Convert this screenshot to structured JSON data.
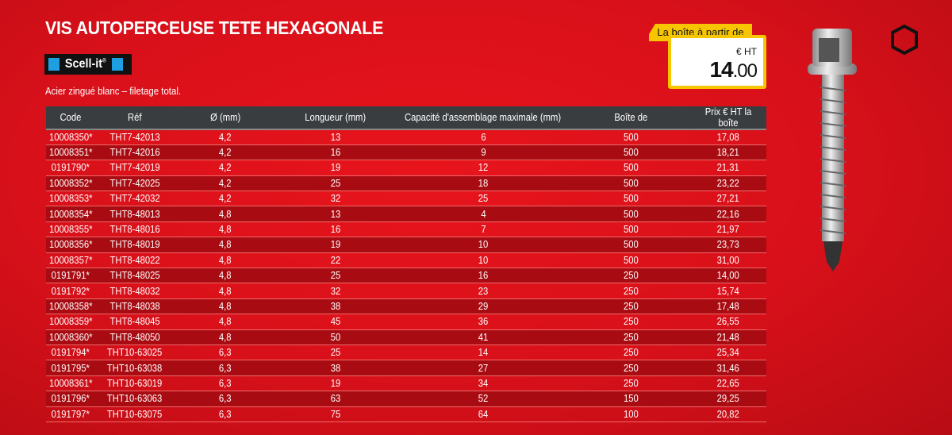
{
  "title": "VIS AUTOPERCEUSE TETE HEXAGONALE",
  "brand": "Scell-it",
  "brand_mark": "®",
  "subtitle": "Acier zingué blanc – filetage total.",
  "price_tag": {
    "label": "La boîte à partir de",
    "unit": "€ HT",
    "int": "14",
    "dec": ".00"
  },
  "colors": {
    "background": "#d8101a",
    "header": "#3a3d40",
    "alt_row": "#a80c12",
    "tag": "#f7c600",
    "brand_blue": "#1ea0e0"
  },
  "icons": [
    "screw-image",
    "hexagon-head-icon"
  ],
  "table": {
    "headers": [
      "Code",
      "Réf",
      "Ø (mm)",
      "Longueur (mm)",
      "Capacité d'assemblage maximale (mm)",
      "Boîte de",
      "Prix € HT la boîte"
    ],
    "rows": [
      [
        "10008350*",
        "THT7-42013",
        "4,2",
        "13",
        "6",
        "500",
        "17,08"
      ],
      [
        "10008351*",
        "THT7-42016",
        "4,2",
        "16",
        "9",
        "500",
        "18,21"
      ],
      [
        "0191790*",
        "THT7-42019",
        "4,2",
        "19",
        "12",
        "500",
        "21,31"
      ],
      [
        "10008352*",
        "THT7-42025",
        "4,2",
        "25",
        "18",
        "500",
        "23,22"
      ],
      [
        "10008353*",
        "THT7-42032",
        "4,2",
        "32",
        "25",
        "500",
        "27,21"
      ],
      [
        "10008354*",
        "THT8-48013",
        "4,8",
        "13",
        "4",
        "500",
        "22,16"
      ],
      [
        "10008355*",
        "THT8-48016",
        "4,8",
        "16",
        "7",
        "500",
        "21,97"
      ],
      [
        "10008356*",
        "THT8-48019",
        "4,8",
        "19",
        "10",
        "500",
        "23,73"
      ],
      [
        "10008357*",
        "THT8-48022",
        "4,8",
        "22",
        "10",
        "500",
        "31,00"
      ],
      [
        "0191791*",
        "THT8-48025",
        "4,8",
        "25",
        "16",
        "250",
        "14,00"
      ],
      [
        "0191792*",
        "THT8-48032",
        "4,8",
        "32",
        "23",
        "250",
        "15,74"
      ],
      [
        "10008358*",
        "THT8-48038",
        "4,8",
        "38",
        "29",
        "250",
        "17,48"
      ],
      [
        "10008359*",
        "THT8-48045",
        "4,8",
        "45",
        "36",
        "250",
        "26,55"
      ],
      [
        "10008360*",
        "THT8-48050",
        "4,8",
        "50",
        "41",
        "250",
        "21,48"
      ],
      [
        "0191794*",
        "THT10-63025",
        "6,3",
        "25",
        "14",
        "250",
        "25,34"
      ],
      [
        "0191795*",
        "THT10-63038",
        "6,3",
        "38",
        "27",
        "250",
        "31,46"
      ],
      [
        "10008361*",
        "THT10-63019",
        "6,3",
        "19",
        "34",
        "250",
        "22,65"
      ],
      [
        "0191796*",
        "THT10-63063",
        "6,3",
        "63",
        "52",
        "150",
        "29,25"
      ],
      [
        "0191797*",
        "THT10-63075",
        "6,3",
        "75",
        "64",
        "100",
        "20,82"
      ]
    ]
  }
}
